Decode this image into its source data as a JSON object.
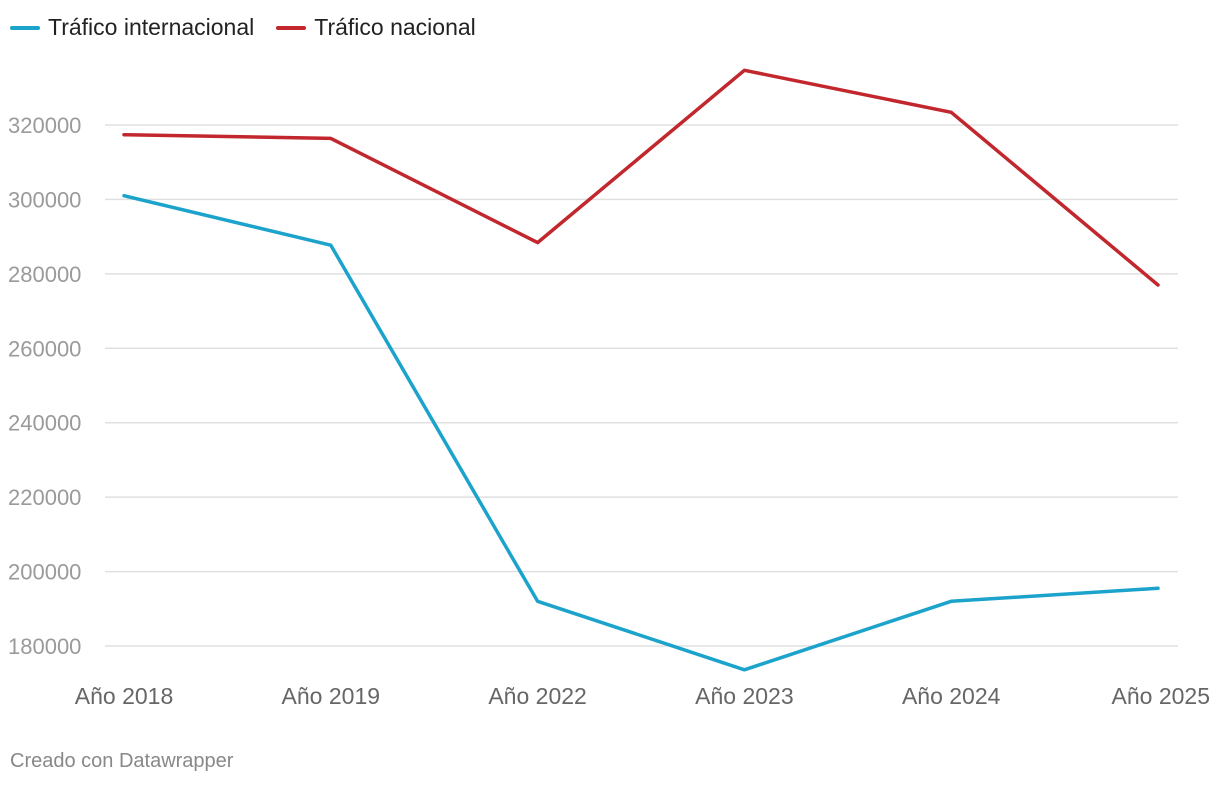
{
  "chart_data": {
    "type": "line",
    "title": "",
    "xlabel": "",
    "ylabel": "",
    "categories": [
      "Año 2018",
      "Año 2019",
      "Año 2022",
      "Año 2023",
      "Año 2024",
      "Año 2025"
    ],
    "series": [
      {
        "name": "Tráfico internacional",
        "color": "#1ba3cc",
        "values": [
          301000,
          287700,
          192000,
          173600,
          192000,
          195500
        ]
      },
      {
        "name": "Tráfico nacional",
        "color": "#c1272d",
        "values": [
          317400,
          316400,
          288400,
          334700,
          323400,
          277000
        ]
      }
    ],
    "yticks": [
      180000,
      200000,
      220000,
      240000,
      260000,
      280000,
      300000,
      320000
    ],
    "ytick_labels": [
      "180000",
      "200000",
      "220000",
      "240000",
      "260000",
      "280000",
      "300000",
      "320000"
    ],
    "ylim": [
      173000,
      335000
    ],
    "grid": true,
    "legend": "top-left"
  },
  "footer": {
    "credit": "Creado con Datawrapper"
  }
}
